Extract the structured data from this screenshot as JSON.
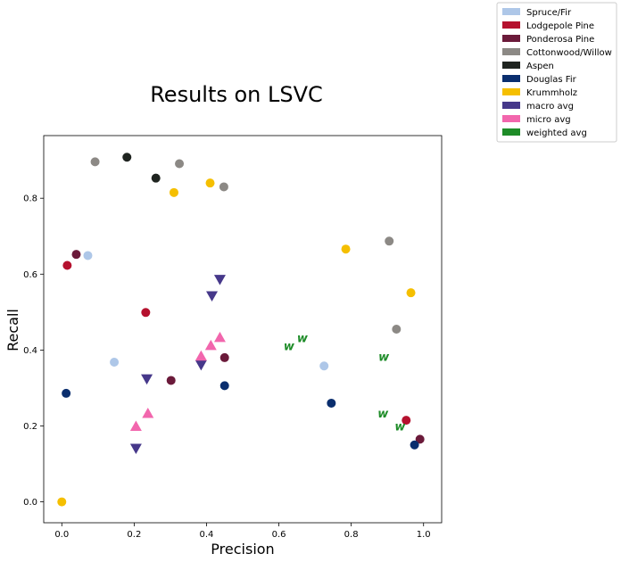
{
  "chart_data": {
    "type": "scatter",
    "title": "Results on LSVC",
    "xlabel": "Precision",
    "ylabel": "Recall",
    "xlim": [
      -0.05,
      1.05
    ],
    "ylim": [
      -0.055,
      0.965
    ],
    "xticks": [
      "0.0",
      "0.2",
      "0.4",
      "0.6",
      "0.8",
      "1.0"
    ],
    "yticks": [
      "0.0",
      "0.2",
      "0.4",
      "0.6",
      "0.8"
    ],
    "grid": false,
    "legend_position": "outside-top-right",
    "series": [
      {
        "name": "Spruce/Fir",
        "color": "#aec7e8",
        "marker": "circle",
        "points": [
          [
            0.072,
            0.649
          ],
          [
            0.145,
            0.368
          ],
          [
            0.725,
            0.358
          ]
        ]
      },
      {
        "name": "Lodgepole Pine",
        "color": "#b5112e",
        "marker": "circle",
        "points": [
          [
            0.015,
            0.623
          ],
          [
            0.232,
            0.499
          ],
          [
            0.952,
            0.215
          ]
        ]
      },
      {
        "name": "Ponderosa Pine",
        "color": "#6b1a3a",
        "marker": "circle",
        "points": [
          [
            0.04,
            0.652
          ],
          [
            0.302,
            0.32
          ],
          [
            0.45,
            0.38
          ],
          [
            0.99,
            0.165
          ]
        ]
      },
      {
        "name": "Cottonwood/Willow",
        "color": "#8c8985",
        "marker": "circle",
        "points": [
          [
            0.092,
            0.896
          ],
          [
            0.325,
            0.891
          ],
          [
            0.448,
            0.83
          ],
          [
            0.905,
            0.687
          ],
          [
            0.925,
            0.455
          ]
        ]
      },
      {
        "name": "Aspen",
        "color": "#1f2420",
        "marker": "circle",
        "points": [
          [
            0.18,
            0.908
          ],
          [
            0.26,
            0.853
          ]
        ]
      },
      {
        "name": "Douglas Fir",
        "color": "#0a2e6e",
        "marker": "circle",
        "points": [
          [
            0.012,
            0.286
          ],
          [
            0.45,
            0.306
          ],
          [
            0.745,
            0.26
          ],
          [
            0.975,
            0.15
          ]
        ]
      },
      {
        "name": "Krummholz",
        "color": "#f5bf00",
        "marker": "circle",
        "points": [
          [
            0.0,
            0.0
          ],
          [
            0.31,
            0.815
          ],
          [
            0.41,
            0.84
          ],
          [
            0.785,
            0.666
          ],
          [
            0.965,
            0.551
          ]
        ]
      },
      {
        "name": "macro avg",
        "color": "#46388a",
        "marker": "triangle-down",
        "points": [
          [
            0.205,
            0.14
          ],
          [
            0.235,
            0.323
          ],
          [
            0.385,
            0.36
          ],
          [
            0.415,
            0.542
          ],
          [
            0.437,
            0.585
          ]
        ]
      },
      {
        "name": "micro avg",
        "color": "#f266ad",
        "marker": "triangle-up",
        "points": [
          [
            0.205,
            0.2
          ],
          [
            0.238,
            0.234
          ],
          [
            0.385,
            0.385
          ],
          [
            0.412,
            0.413
          ],
          [
            0.437,
            0.434
          ]
        ]
      },
      {
        "name": "weighted avg",
        "color": "#1e8c28",
        "marker": "w",
        "points": [
          [
            0.628,
            0.412
          ],
          [
            0.665,
            0.433
          ],
          [
            0.89,
            0.383
          ],
          [
            0.888,
            0.234
          ],
          [
            0.935,
            0.2
          ]
        ]
      }
    ]
  }
}
